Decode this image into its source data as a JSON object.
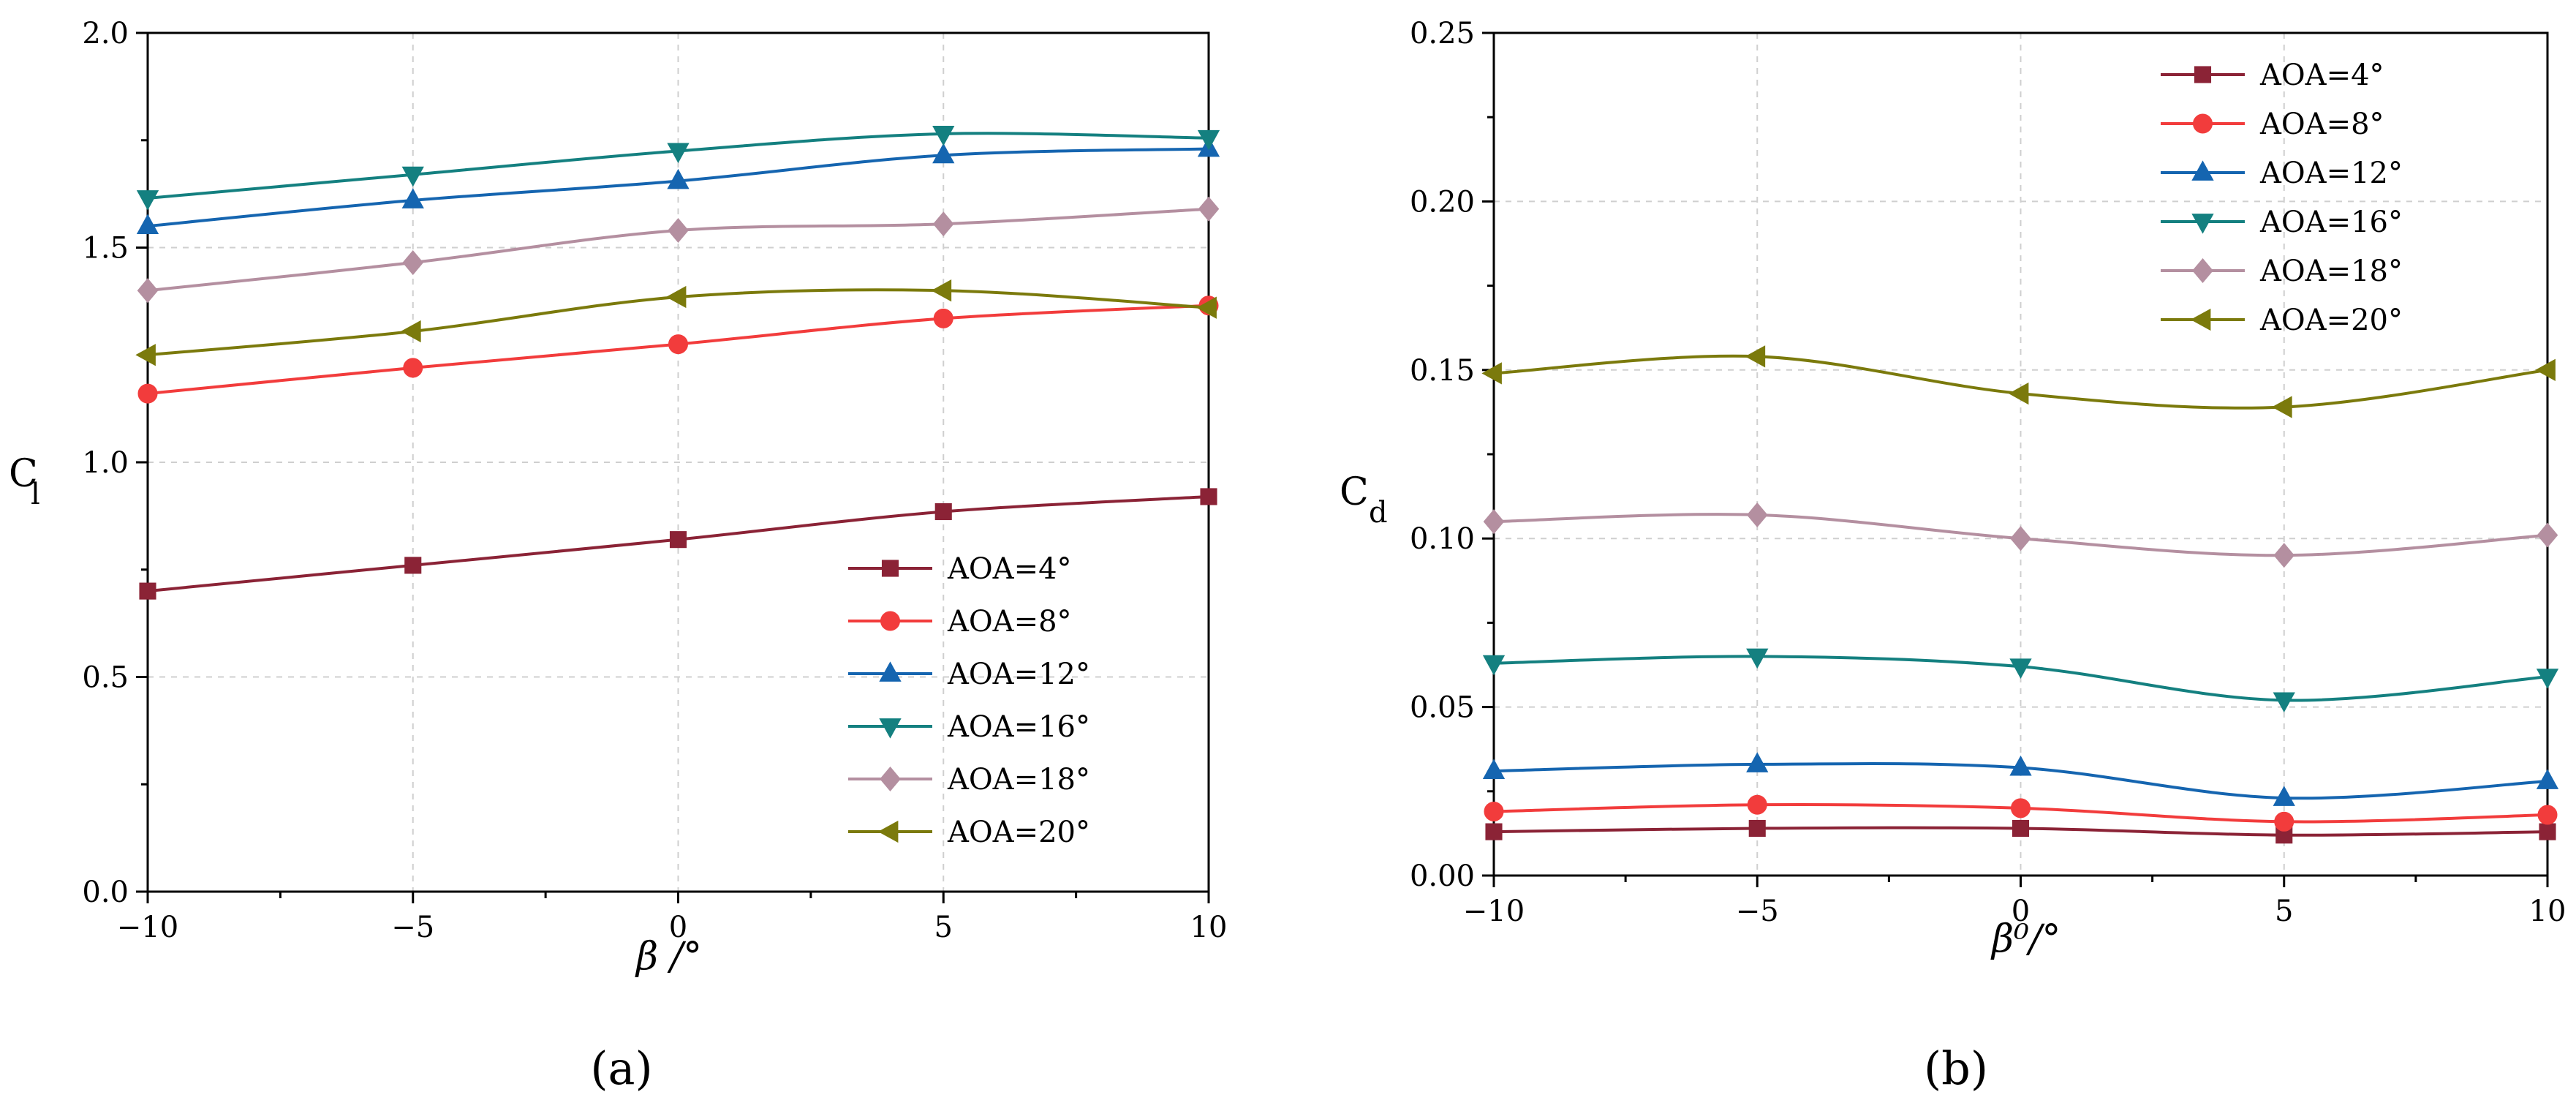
{
  "chart_data": [
    {
      "type": "line",
      "panel_label": "(a)",
      "xlabel": "β /°",
      "ylabel": "C",
      "ylabel_sub": "l",
      "xlim": [
        -10,
        10
      ],
      "ylim": [
        0,
        2
      ],
      "xticks": [
        -10,
        -5,
        0,
        5,
        10
      ],
      "xtick_labels": [
        "−10",
        "−5",
        "0",
        "5",
        "10"
      ],
      "yticks": [
        0,
        0.5,
        1,
        1.5,
        2
      ],
      "ytick_labels": [
        "0.0",
        "0.5",
        "1.0",
        "1.5",
        "2.0"
      ],
      "grid": true,
      "legend_position": "bottom-right",
      "x": [
        -10,
        -5,
        0,
        5,
        10
      ],
      "series": [
        {
          "name": "AOA=4°",
          "color": "#8b2336",
          "marker": "square",
          "values": [
            0.7,
            0.76,
            0.82,
            0.885,
            0.92
          ]
        },
        {
          "name": "AOA=8°",
          "color": "#f23c3c",
          "marker": "circle",
          "values": [
            1.16,
            1.22,
            1.275,
            1.335,
            1.365
          ]
        },
        {
          "name": "AOA=12°",
          "color": "#1565b0",
          "marker": "triangle-up",
          "values": [
            1.55,
            1.61,
            1.655,
            1.715,
            1.73
          ]
        },
        {
          "name": "AOA=16°",
          "color": "#148080",
          "marker": "triangle-down",
          "values": [
            1.615,
            1.67,
            1.725,
            1.765,
            1.755
          ]
        },
        {
          "name": "AOA=18°",
          "color": "#b48fa0",
          "marker": "diamond",
          "values": [
            1.4,
            1.465,
            1.54,
            1.555,
            1.59
          ]
        },
        {
          "name": "AOA=20°",
          "color": "#7b7a0c",
          "marker": "triangle-left",
          "values": [
            1.25,
            1.305,
            1.385,
            1.4,
            1.36
          ]
        }
      ]
    },
    {
      "type": "line",
      "panel_label": "(b)",
      "xlabel": "β⁰/°",
      "ylabel": "C",
      "ylabel_sub": "d",
      "xlim": [
        -10,
        10
      ],
      "ylim": [
        0,
        0.25
      ],
      "xticks": [
        -10,
        -5,
        0,
        5,
        10
      ],
      "xtick_labels": [
        "−10",
        "−5",
        "0",
        "5",
        "10"
      ],
      "yticks": [
        0,
        0.05,
        0.1,
        0.15,
        0.2,
        0.25
      ],
      "ytick_labels": [
        "0.00",
        "0.05",
        "0.10",
        "0.15",
        "0.20",
        "0.25"
      ],
      "grid": true,
      "legend_position": "top-left",
      "x": [
        -10,
        -5,
        0,
        5,
        10
      ],
      "series": [
        {
          "name": "AOA=4°",
          "color": "#8b2336",
          "marker": "square",
          "values": [
            0.013,
            0.014,
            0.014,
            0.012,
            0.013
          ]
        },
        {
          "name": "AOA=8°",
          "color": "#f23c3c",
          "marker": "circle",
          "values": [
            0.019,
            0.021,
            0.02,
            0.016,
            0.018
          ]
        },
        {
          "name": "AOA=12°",
          "color": "#1565b0",
          "marker": "triangle-up",
          "values": [
            0.031,
            0.033,
            0.032,
            0.023,
            0.028
          ]
        },
        {
          "name": "AOA=16°",
          "color": "#148080",
          "marker": "triangle-down",
          "values": [
            0.063,
            0.065,
            0.062,
            0.052,
            0.059
          ]
        },
        {
          "name": "AOA=18°",
          "color": "#b48fa0",
          "marker": "diamond",
          "values": [
            0.105,
            0.107,
            0.1,
            0.095,
            0.101
          ]
        },
        {
          "name": "AOA=20°",
          "color": "#7b7a0c",
          "marker": "triangle-left",
          "values": [
            0.149,
            0.154,
            0.143,
            0.139,
            0.15
          ]
        }
      ]
    }
  ]
}
